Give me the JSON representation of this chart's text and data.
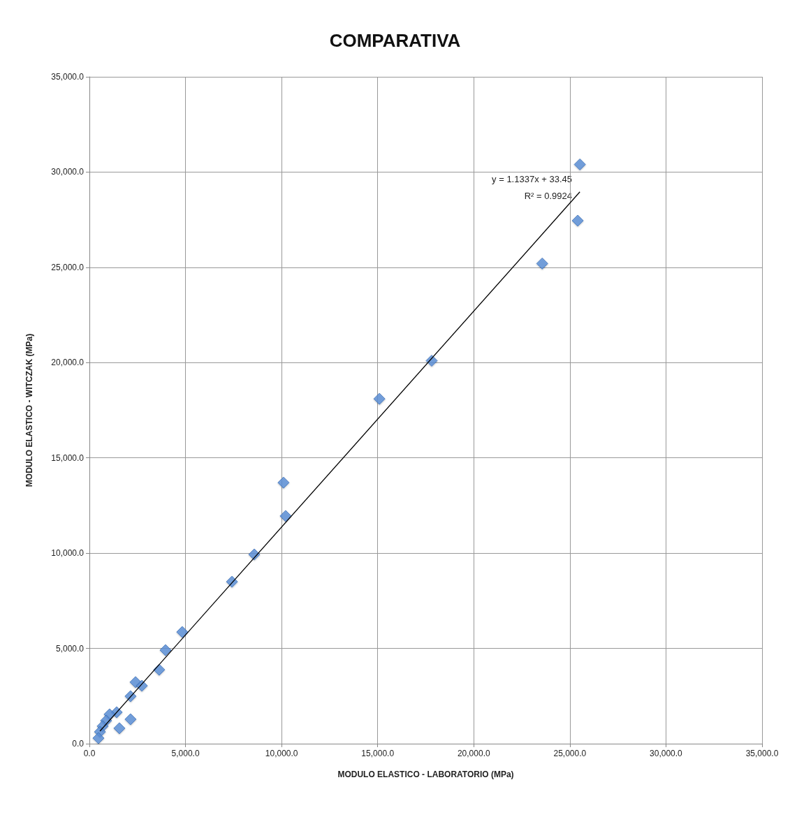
{
  "chart_data": {
    "type": "scatter",
    "title": "COMPARATIVA",
    "xlabel": "MODULO ELASTICO - LABORATORIO (MPa)",
    "ylabel": "MODULO ELASTICO - WITCZAK (MPa)",
    "annotations": [
      "y = 1.1337x + 33.45",
      "R² = 0.9924"
    ],
    "xlim": [
      0,
      35000
    ],
    "ylim": [
      0,
      35000
    ],
    "xticks": [
      {
        "value": 0,
        "label": "0.0"
      },
      {
        "value": 5000,
        "label": "5,000.0"
      },
      {
        "value": 10000,
        "label": "10,000.0"
      },
      {
        "value": 15000,
        "label": "15,000.0"
      },
      {
        "value": 20000,
        "label": "20,000.0"
      },
      {
        "value": 25000,
        "label": "25,000.0"
      },
      {
        "value": 30000,
        "label": "30,000.0"
      },
      {
        "value": 35000,
        "label": "35,000.0"
      }
    ],
    "yticks": [
      {
        "value": 0,
        "label": "0.0"
      },
      {
        "value": 5000,
        "label": "5,000.0"
      },
      {
        "value": 10000,
        "label": "10,000.0"
      },
      {
        "value": 15000,
        "label": "15,000.0"
      },
      {
        "value": 20000,
        "label": "20,000.0"
      },
      {
        "value": 25000,
        "label": "25,000.0"
      },
      {
        "value": 30000,
        "label": "30,000.0"
      },
      {
        "value": 35000,
        "label": "35,000.0"
      }
    ],
    "grid": true,
    "marker": "diamond",
    "series": [
      {
        "color": "#5b8fd8",
        "x": [
          25520,
          25410,
          23560,
          17810,
          15090,
          10100,
          10210,
          8580,
          7420,
          4830,
          3960,
          3630,
          2400,
          2730,
          2140,
          2140,
          1560,
          1420,
          1050,
          870,
          690,
          550,
          470
        ],
        "values": [
          30400,
          27450,
          25200,
          20100,
          18100,
          13700,
          11950,
          9930,
          8500,
          5860,
          4910,
          3880,
          3230,
          3040,
          2490,
          1280,
          810,
          1650,
          1540,
          1210,
          920,
          620,
          290
        ]
      },
      {
        "type": "line",
        "color": "#000000",
        "marker": "none",
        "x": [
          550,
          25520
        ],
        "values": [
          660,
          28960
        ]
      }
    ]
  }
}
